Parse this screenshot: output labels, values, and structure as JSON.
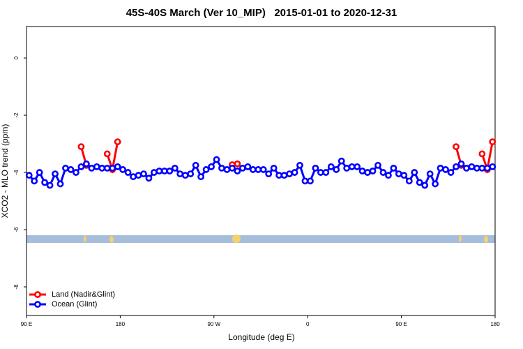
{
  "chart_data": {
    "type": "line",
    "title": "45S-40S March (Ver 10_MIP)   2015-01-01 to 2020-12-31",
    "x_label": "Longitude (deg E)",
    "y_label": "XCO2 - MLO trend (ppm)",
    "xlim": [
      90,
      540
    ],
    "ylim": [
      -9,
      1.1
    ],
    "xticks": [
      {
        "value": 90,
        "label": "90 E"
      },
      180,
      {
        "value": 270,
        "label": "90 W"
      },
      {
        "value": 360,
        "label": "0"
      },
      {
        "value": 450,
        "label": "90 E"
      },
      {
        "value": 540,
        "label": "180"
      }
    ],
    "yticks": [
      0,
      -2,
      -4,
      -6,
      -8
    ],
    "legend": "bottom-left",
    "x": [
      92.5,
      97.5,
      102.5,
      107.5,
      112.5,
      117.5,
      122.5,
      127.5,
      132.5,
      137.5,
      142.5,
      147.5,
      152.5,
      157.5,
      162.5,
      167.5,
      172.5,
      177.5,
      182.5,
      187.5,
      192.5,
      197.5,
      202.5,
      207.5,
      212.5,
      217.5,
      222.5,
      227.5,
      232.5,
      237.5,
      242.5,
      247.5,
      252.5,
      257.5,
      262.5,
      267.5,
      272.5,
      277.5,
      282.5,
      287.5,
      292.5,
      297.5,
      302.5,
      307.5,
      312.5,
      317.5,
      322.5,
      327.5,
      332.5,
      337.5,
      342.5,
      347.5,
      352.5,
      357.5,
      362.5,
      367.5,
      372.5,
      377.5,
      382.5,
      387.5,
      392.5,
      397.5,
      402.5,
      407.5,
      412.5,
      417.5,
      422.5,
      427.5,
      432.5,
      437.5,
      442.5,
      447.5,
      452.5,
      457.5,
      462.5,
      467.5,
      472.5,
      477.5,
      482.5,
      487.5,
      492.5,
      497.5,
      502.5,
      507.5,
      512.5,
      517.5,
      522.5,
      527.5,
      532.5,
      537.5
    ],
    "series": [
      {
        "name": "Land (Nadir&Glint)",
        "color": "#ff0000",
        "values": [
          null,
          null,
          null,
          null,
          null,
          null,
          null,
          null,
          null,
          null,
          -3.1,
          -3.75,
          null,
          null,
          null,
          -3.35,
          -3.9,
          -2.93,
          null,
          null,
          null,
          null,
          null,
          null,
          null,
          null,
          null,
          null,
          null,
          null,
          null,
          null,
          null,
          null,
          null,
          null,
          null,
          null,
          null,
          -3.73,
          -3.7,
          null,
          null,
          null,
          null,
          null,
          null,
          null,
          null,
          null,
          null,
          null,
          null,
          null,
          null,
          null,
          null,
          null,
          null,
          null,
          null,
          null,
          null,
          null,
          null,
          null,
          null,
          null,
          null,
          null,
          null,
          null,
          null,
          null,
          null,
          null,
          null,
          null,
          null,
          null,
          null,
          null,
          -3.1,
          -3.75,
          null,
          null,
          null,
          -3.35,
          -3.9,
          -2.93
        ]
      },
      {
        "name": "Ocean (Glint)",
        "color": "#0000ff",
        "values": [
          -4.1,
          -4.3,
          -4.0,
          -4.35,
          -4.45,
          -4.05,
          -4.4,
          -3.85,
          -3.9,
          -4.0,
          -3.8,
          -3.7,
          -3.85,
          -3.8,
          -3.85,
          -3.85,
          -3.85,
          -3.8,
          -3.9,
          -4.0,
          -4.15,
          -4.1,
          -4.05,
          -4.2,
          -4.0,
          -3.95,
          -3.95,
          -3.95,
          -3.85,
          -4.05,
          -4.1,
          -4.05,
          -3.75,
          -4.15,
          -3.9,
          -3.8,
          -3.55,
          -3.85,
          -3.9,
          -3.85,
          -3.95,
          -3.85,
          -3.8,
          -3.9,
          -3.9,
          -3.9,
          -4.05,
          -3.85,
          -4.1,
          -4.1,
          -4.05,
          -4.0,
          -3.75,
          -4.3,
          -4.3,
          -3.85,
          -4.0,
          -4.0,
          -3.8,
          -3.9,
          -3.6,
          -3.85,
          -3.8,
          -3.8,
          -3.95,
          -4.0,
          -3.95,
          -3.75,
          -4.0,
          -4.1,
          -3.85,
          -4.05,
          -4.1,
          -4.3,
          -4.0,
          -4.35,
          -4.45,
          -4.05,
          -4.4,
          -3.85,
          -3.9,
          -4.0,
          -3.8,
          -3.7,
          -3.85,
          -3.8,
          -3.85,
          -3.85,
          -3.85,
          -3.8
        ]
      }
    ]
  }
}
